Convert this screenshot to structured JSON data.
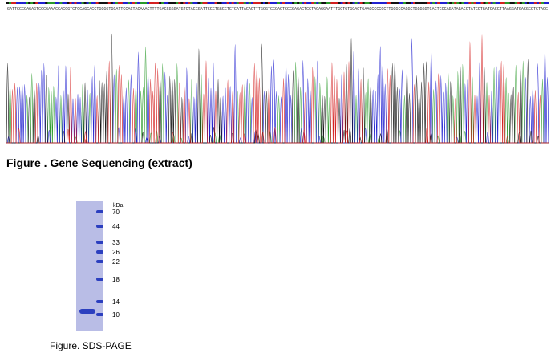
{
  "figures": {
    "sequencing": {
      "caption": "Figure . Gene Sequencing (extract)",
      "sequence": "GATTCCCCAGAGTCCCGAAACCACCGTCTCCAGCACCTGGGGTGCATTCCACTACAAACTTTTGACCGGGATGTCTACCGATTCCCTGGCCTCTCATTACACTTTGCGTCCCACTCCCGAGACTCCTACAGGAATTTGCTGTGCACTGAAGCCCCCCTTGGGCCAGGCTGGGGGTCACTCCCAGATAGACCTATCCTGATCACCTTAAGGATGACGCCTCTACC",
      "base_colors": {
        "A": "#2a9a2a",
        "C": "#2020d0",
        "G": "#111111",
        "T": "#d42020"
      }
    },
    "sds_page": {
      "caption": "Figure. SDS-PAGE",
      "unit_label": "kDa",
      "marker_labels": [
        "70",
        "44",
        "33",
        "26",
        "22",
        "18",
        "14",
        "10"
      ],
      "gel_color": "#b9bde6",
      "band_color": "#2b3fbf"
    }
  }
}
